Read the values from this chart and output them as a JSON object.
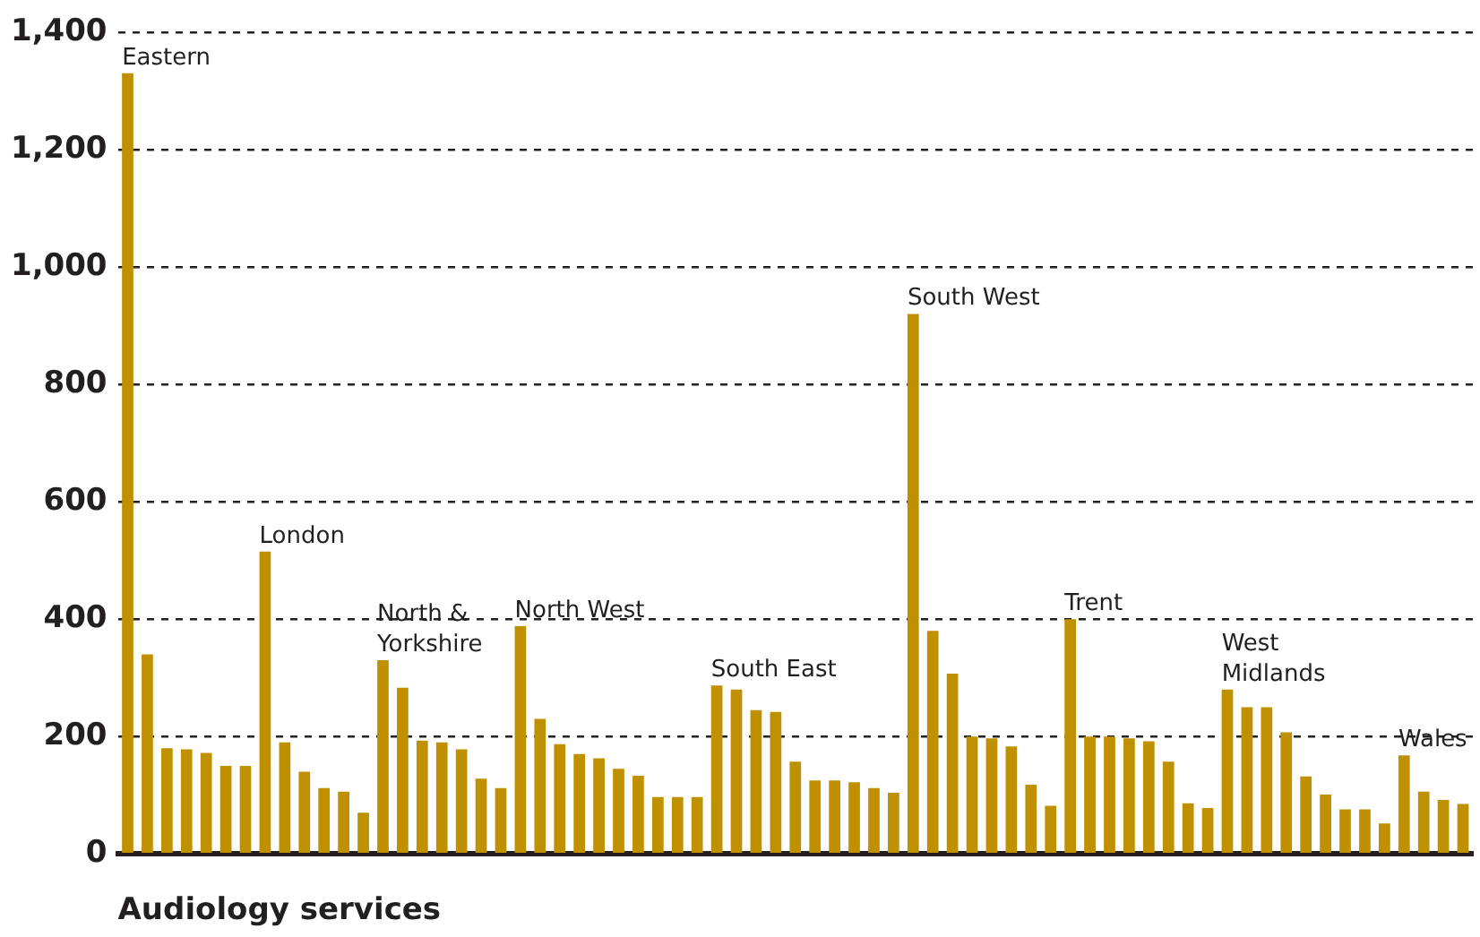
{
  "chart_data": {
    "type": "bar",
    "xlabel": "Audiology services",
    "categories": [
      null,
      null,
      null,
      null,
      null,
      null,
      null,
      null,
      null,
      null,
      null,
      null,
      null,
      null,
      null,
      null,
      null,
      null,
      null,
      null,
      null,
      null,
      null,
      null,
      null,
      null,
      null,
      null,
      null,
      null,
      null,
      null,
      null,
      null,
      null,
      null,
      null,
      null,
      null,
      null,
      null,
      null,
      null,
      null,
      null,
      null,
      null,
      null,
      null,
      null,
      null,
      null,
      null,
      null,
      null,
      null,
      null,
      null,
      null,
      null,
      null,
      null,
      null,
      null,
      null,
      null,
      null,
      null,
      null
    ],
    "values": [
      1330,
      340,
      180,
      178,
      172,
      150,
      150,
      515,
      190,
      140,
      112,
      106,
      70,
      330,
      283,
      193,
      190,
      178,
      128,
      112,
      388,
      230,
      187,
      170,
      163,
      145,
      133,
      97,
      97,
      97,
      287,
      280,
      245,
      242,
      157,
      125,
      125,
      122,
      112,
      104,
      920,
      380,
      307,
      200,
      197,
      183,
      118,
      82,
      400,
      200,
      200,
      197,
      192,
      157,
      86,
      78,
      280,
      250,
      250,
      207,
      132,
      101,
      76,
      76,
      52,
      168,
      106,
      92,
      85
    ],
    "color": "#bf9000",
    "ylim": [
      0,
      1400
    ],
    "yticks": [
      0,
      200,
      400,
      600,
      800,
      {
        "value": 1000,
        "label": "1,000"
      },
      {
        "value": 1200,
        "label": "1,200"
      },
      {
        "value": 1400,
        "label": "1,400"
      }
    ],
    "grid": "y",
    "annotations": [
      "Eastern",
      "London",
      "North &\nYorkshire",
      "North West",
      "South East",
      "South West",
      "Trent",
      "West\nMidlands",
      "Wales"
    ]
  }
}
